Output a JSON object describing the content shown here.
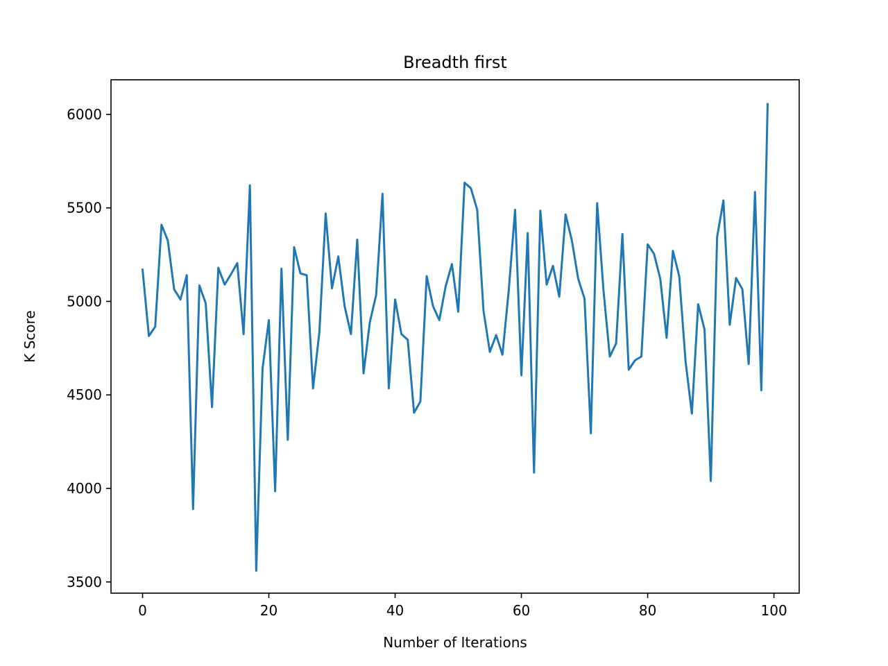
{
  "chart_data": {
    "type": "line",
    "title": "Breadth first",
    "xlabel": "Number of Iterations",
    "ylabel": "K Score",
    "xlim": [
      -5,
      104
    ],
    "ylim": [
      3440,
      6185
    ],
    "xticks": [
      0,
      20,
      40,
      60,
      80,
      100
    ],
    "xtick_labels": [
      "0",
      "20",
      "40",
      "60",
      "80",
      "100"
    ],
    "yticks": [
      3500,
      4000,
      4500,
      5000,
      5500,
      6000
    ],
    "ytick_labels": [
      "3500",
      "4000",
      "4500",
      "5000",
      "5500",
      "6000"
    ],
    "grid": false,
    "series": [
      {
        "color": "#1f77b4",
        "x": [
          0,
          1,
          2,
          3,
          4,
          5,
          6,
          7,
          8,
          9,
          10,
          11,
          12,
          13,
          14,
          15,
          16,
          17,
          18,
          19,
          20,
          21,
          22,
          23,
          24,
          25,
          26,
          27,
          28,
          29,
          30,
          31,
          32,
          33,
          34,
          35,
          36,
          37,
          38,
          39,
          40,
          41,
          42,
          43,
          44,
          45,
          46,
          47,
          48,
          49,
          50,
          51,
          52,
          53,
          54,
          55,
          56,
          57,
          58,
          59,
          60,
          61,
          62,
          63,
          64,
          65,
          66,
          67,
          68,
          69,
          70,
          71,
          72,
          73,
          74,
          75,
          76,
          77,
          78,
          79,
          80,
          81,
          82,
          83,
          84,
          85,
          86,
          87,
          88,
          89,
          90,
          91,
          92,
          93,
          94,
          95,
          96,
          97,
          98,
          99
        ],
        "values": [
          5170,
          4815,
          4865,
          5410,
          5325,
          5065,
          5010,
          5140,
          3890,
          5085,
          4990,
          4435,
          5180,
          5090,
          5145,
          5205,
          4825,
          5620,
          3560,
          4640,
          4900,
          3985,
          5175,
          4260,
          5290,
          5150,
          5140,
          4535,
          4835,
          5470,
          5070,
          5240,
          4975,
          4825,
          5330,
          4615,
          4890,
          5035,
          5575,
          4535,
          5010,
          4825,
          4795,
          4405,
          4465,
          5135,
          4975,
          4900,
          5080,
          5200,
          4945,
          5635,
          5605,
          5490,
          4950,
          4730,
          4820,
          4715,
          5060,
          5490,
          4605,
          5365,
          4085,
          5485,
          5090,
          5190,
          5025,
          5465,
          5325,
          5120,
          5015,
          4295,
          5525,
          5060,
          4705,
          4775,
          5360,
          4635,
          4685,
          4705,
          5305,
          5255,
          5120,
          4805,
          5270,
          5135,
          4680,
          4400,
          4985,
          4850,
          4040,
          5345,
          5540,
          4875,
          5125,
          5065,
          4665,
          5585,
          4525,
          6055
        ]
      }
    ]
  }
}
